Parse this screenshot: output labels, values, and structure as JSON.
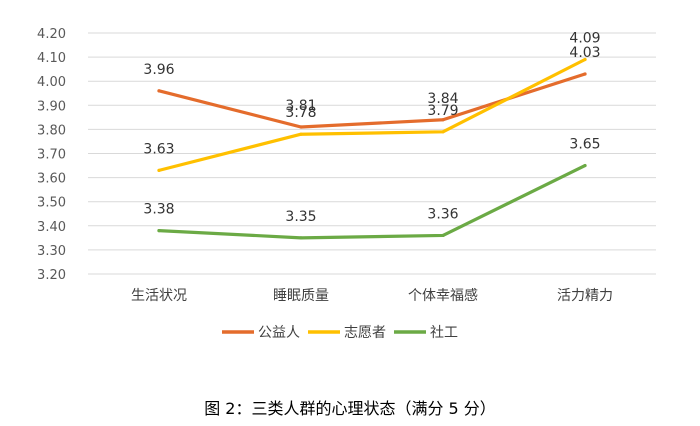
{
  "chart_data": {
    "type": "line",
    "categories": [
      "生活状况",
      "睡眠质量",
      "个体幸福感",
      "活力精力"
    ],
    "series": [
      {
        "name": "公益人",
        "color": "#E46C2C",
        "values": [
          3.96,
          3.81,
          3.84,
          4.03
        ]
      },
      {
        "name": "志愿者",
        "color": "#FFC000",
        "values": [
          3.63,
          3.78,
          3.79,
          4.09
        ]
      },
      {
        "name": "社工",
        "color": "#6BAA45",
        "values": [
          3.38,
          3.35,
          3.36,
          3.65
        ]
      }
    ],
    "y_ticks": [
      "3.20",
      "3.30",
      "3.40",
      "3.50",
      "3.60",
      "3.70",
      "3.80",
      "3.90",
      "4.00",
      "4.10",
      "4.20"
    ],
    "ylim": [
      3.2,
      4.2
    ],
    "grid": true,
    "legend_position": "bottom"
  },
  "caption": {
    "text": "图 2：三类人群的心理状态（满分 5 分）"
  }
}
